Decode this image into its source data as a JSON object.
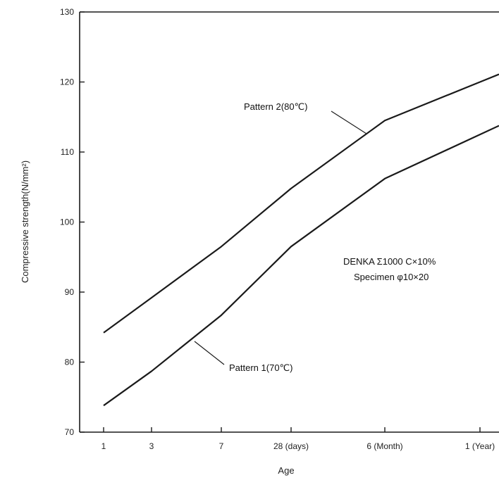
{
  "chart_data": {
    "type": "line",
    "title": "",
    "xlabel": "Age",
    "ylabel": "Compressive strength(N/mm²)",
    "categories": [
      "1",
      "3",
      "7",
      "28 (days)",
      "6 (Month)",
      "1 (Year)"
    ],
    "ylim": [
      70,
      130
    ],
    "yticks": [
      70,
      80,
      90,
      100,
      110,
      120,
      130
    ],
    "grid": false,
    "series": [
      {
        "name": "Pattern 1(70℃)",
        "values": [
          73.8,
          78.7,
          86.7,
          96.5,
          106.2,
          112.5
        ]
      },
      {
        "name": "Pattern 2(80℃)",
        "values": [
          84.2,
          89.2,
          96.5,
          104.8,
          114.5,
          120.0
        ]
      }
    ],
    "annotations": [
      {
        "text": "DENKA Σ1000 C×10%"
      },
      {
        "text": "Specimen φ10×20"
      }
    ],
    "colors": {
      "line": "#1a1a1a",
      "axis": "#1a1a1a",
      "background": "#ffffff"
    }
  }
}
